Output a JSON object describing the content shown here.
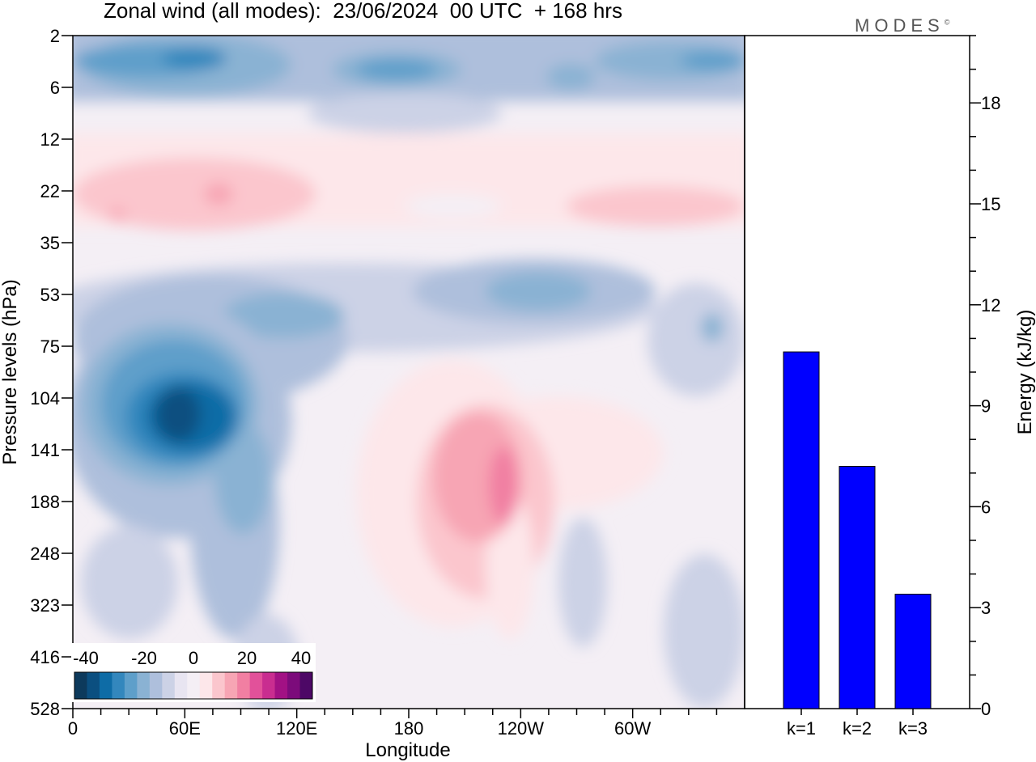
{
  "chart_data": [
    {
      "type": "heatmap",
      "title": "Zonal wind (all modes):  23/06/2024  00 UTC  + 168 hrs",
      "xlabel": "Longitude",
      "ylabel": "Pressure levels (hPa)",
      "x_ticks": [
        "0",
        "60E",
        "120E",
        "180",
        "120W",
        "60W"
      ],
      "y_ticks": [
        "2",
        "6",
        "12",
        "22",
        "35",
        "53",
        "75",
        "104",
        "141",
        "188",
        "248",
        "323",
        "416",
        "528"
      ],
      "colorbar_ticks": [
        "-40",
        "-20",
        "0",
        "20",
        "40"
      ],
      "colorbar_colors": [
        "#0d3a5c",
        "#0b4f80",
        "#0e6ca6",
        "#3387bd",
        "#5e9fca",
        "#8ab2d3",
        "#aebfdc",
        "#ccd2e6",
        "#e8e5f1",
        "#f4eff5",
        "#fde7ea",
        "#fbc6cd",
        "#f7a5b4",
        "#f17fa2",
        "#e2519a",
        "#c92d90",
        "#a21184",
        "#7c0b7b",
        "#4d0866"
      ],
      "description_values": {
        "min_region": "about -40 m/s near 60E-75E at 104-141 hPa",
        "max_region": "about +25 m/s near 120W-135W at 141-188 hPa"
      }
    },
    {
      "type": "bar",
      "categories": [
        "k=1",
        "k=2",
        "k=3"
      ],
      "values": [
        10.6,
        7.2,
        3.4
      ],
      "ylabel": "Energy (kJ/kg)",
      "ylim": [
        0,
        20
      ],
      "y_ticks": [
        0,
        3,
        6,
        9,
        12,
        15,
        18
      ],
      "bar_color": "#0000ff"
    }
  ],
  "logo_text": "MODES",
  "logo_mark": "©"
}
